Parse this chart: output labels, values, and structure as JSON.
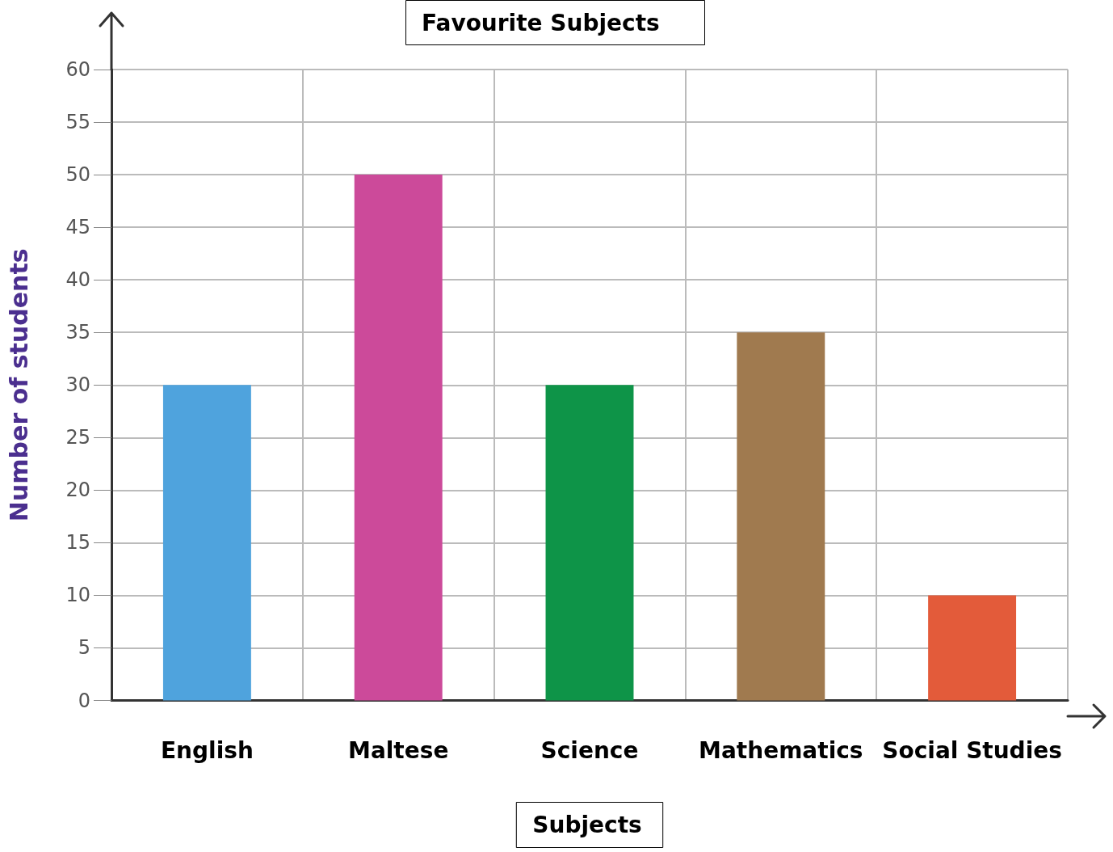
{
  "chart_data": {
    "type": "bar",
    "title": "Favourite Subjects",
    "xlabel": "Subjects",
    "ylabel": "Number of students",
    "categories": [
      "English",
      "Maltese",
      "Science",
      "Mathematics",
      "Social Studies"
    ],
    "values": [
      30,
      50,
      30,
      35,
      10
    ],
    "colors": [
      "#4fa3dd",
      "#cc4a9a",
      "#0e9448",
      "#a07a4f",
      "#e35b3a"
    ],
    "ylim": [
      0,
      60
    ],
    "yticks": [
      0,
      5,
      10,
      15,
      20,
      25,
      30,
      35,
      40,
      45,
      50,
      55,
      60
    ],
    "grid": true
  }
}
